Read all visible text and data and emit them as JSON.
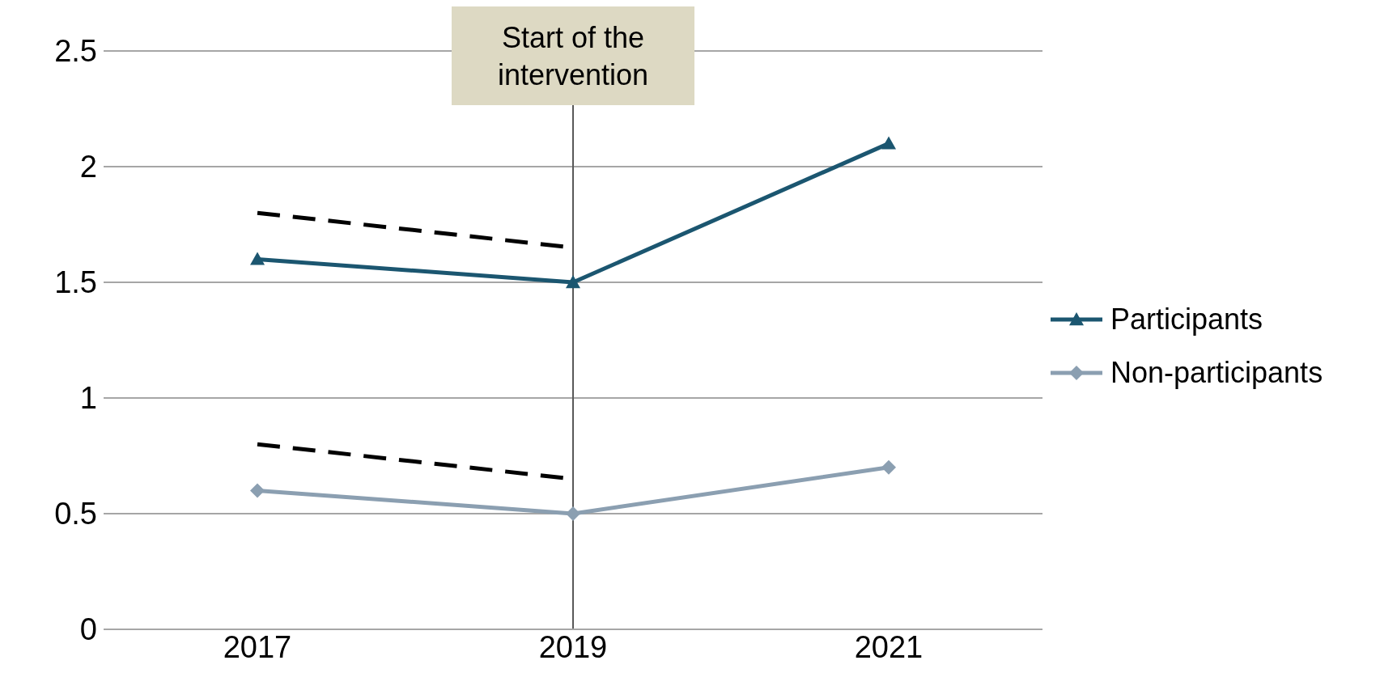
{
  "chart_data": {
    "type": "line",
    "categories": [
      "2017",
      "2019",
      "2021"
    ],
    "series": [
      {
        "name": "Participants",
        "color": "#1b5670",
        "values": [
          1.6,
          1.5,
          2.1
        ],
        "marker": "triangle"
      },
      {
        "name": "Non-participants",
        "color": "#8b9fb1",
        "values": [
          0.6,
          0.5,
          0.7
        ],
        "marker": "diamond"
      },
      {
        "color": "#000000",
        "values": [
          1.8,
          1.65,
          null
        ],
        "marker": "none",
        "line_style": "dashed"
      },
      {
        "color": "#000000",
        "values": [
          0.8,
          0.65,
          null
        ],
        "marker": "none",
        "line_style": "dashed"
      }
    ],
    "ylim": [
      0,
      2.5
    ],
    "yticks": [
      0,
      0.5,
      1,
      1.5,
      2,
      2.5
    ],
    "grid": "y",
    "legend": "right",
    "ref_lines": [
      {
        "axis": "x",
        "value": "2019",
        "label": "Start of the intervention",
        "color": "#595959"
      }
    ]
  }
}
